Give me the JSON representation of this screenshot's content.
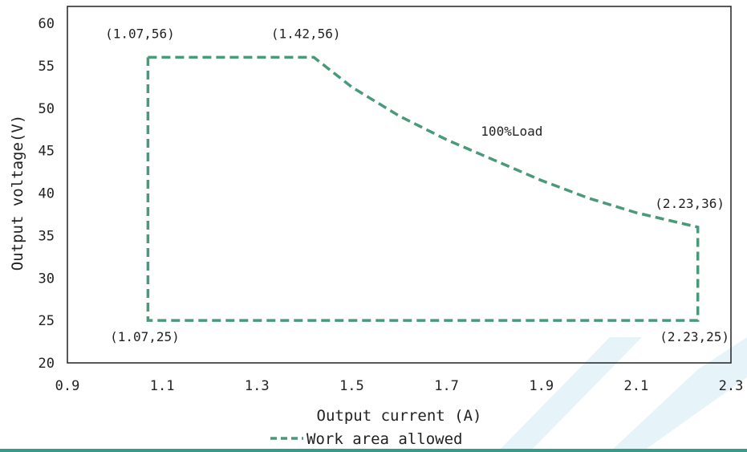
{
  "chart_data": {
    "type": "line",
    "title": "",
    "xlabel": "Output current (A)",
    "ylabel": "Output voltage(V)",
    "xlim": [
      0.9,
      2.3
    ],
    "ylim": [
      20,
      62
    ],
    "x_ticks": [
      "0.9",
      "1.1",
      "1.3",
      "1.5",
      "1.7",
      "1.9",
      "2.1",
      "2.3"
    ],
    "y_ticks": [
      "20",
      "25",
      "30",
      "35",
      "40",
      "45",
      "50",
      "55",
      "60"
    ],
    "grid": false,
    "legend_position": "bottom-center",
    "series": [
      {
        "name": "Work area allowed",
        "color": "#4a9a7a",
        "style": "dashed",
        "x": [
          1.07,
          1.42,
          1.5,
          1.6,
          1.7,
          1.8,
          1.9,
          2.0,
          2.1,
          2.23,
          2.23,
          1.07,
          1.07
        ],
        "y": [
          56,
          56,
          52.5,
          49.1,
          46.3,
          43.9,
          41.5,
          39.4,
          37.7,
          36,
          25,
          25,
          56
        ]
      }
    ],
    "annotations": [
      {
        "text": "(1.07,56)",
        "x": 1.07,
        "y": 56,
        "anchor": "above-left"
      },
      {
        "text": "(1.42,56)",
        "x": 1.42,
        "y": 56,
        "anchor": "above-left"
      },
      {
        "text": "100%Load",
        "x": 1.78,
        "y": 46,
        "anchor": "above-right"
      },
      {
        "text": "(2.23,36)",
        "x": 2.23,
        "y": 36,
        "anchor": "above-left"
      },
      {
        "text": "(1.07,25)",
        "x": 1.07,
        "y": 25,
        "anchor": "below-left"
      },
      {
        "text": "(2.23,25)",
        "x": 2.23,
        "y": 25,
        "anchor": "below-left"
      }
    ]
  },
  "colors": {
    "accent": "#4a9a7a",
    "watermark": "#e6f3f8",
    "bottom_rule": "#3a9a8a"
  }
}
